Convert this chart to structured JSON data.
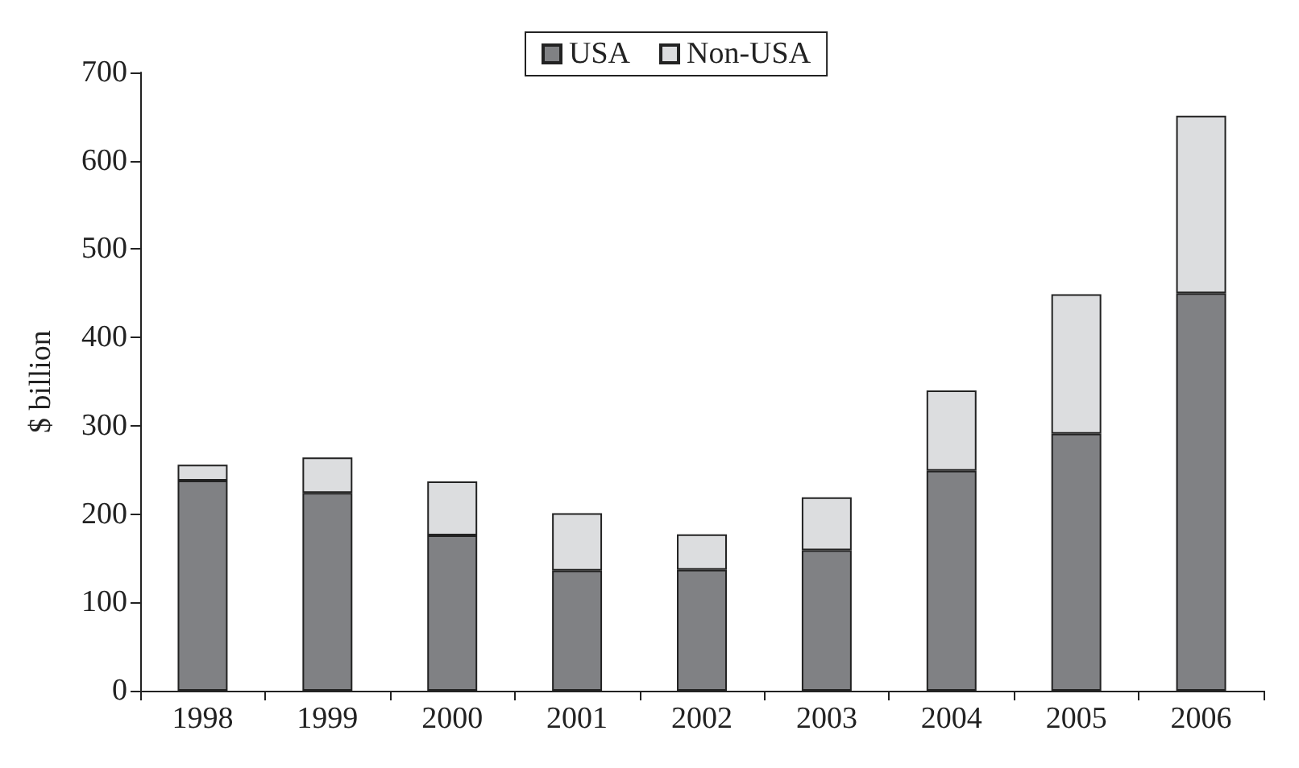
{
  "chart_data": {
    "type": "bar",
    "stacked": true,
    "ylabel": "$ billion",
    "categories": [
      "1998",
      "1999",
      "2000",
      "2001",
      "2002",
      "2003",
      "2004",
      "2005",
      "2006"
    ],
    "series": [
      {
        "name": "USA",
        "color": "#808184",
        "values": [
          238,
          224,
          176,
          136,
          137,
          159,
          249,
          291,
          450
        ]
      },
      {
        "name": "Non-USA",
        "color": "#dcdddf",
        "values": [
          18,
          40,
          61,
          65,
          40,
          60,
          91,
          158,
          201
        ]
      }
    ],
    "ylim": [
      0,
      700
    ],
    "yticks": [
      0,
      100,
      200,
      300,
      400,
      500,
      600,
      700
    ],
    "grid": false,
    "legend": "top"
  }
}
